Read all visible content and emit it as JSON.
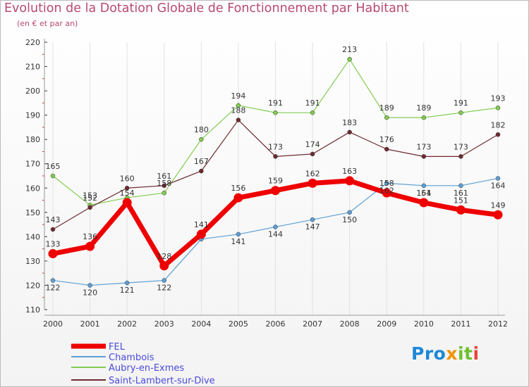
{
  "header": {
    "title": "Evolution de la Dotation Globale de Fonctionnement par Habitant",
    "subtitle": "(en € et par an)"
  },
  "logo": {
    "text": "Proxiti",
    "p1": "Pro",
    "p2": "x",
    "p3": "it",
    "p4": "i"
  },
  "chart_data": {
    "type": "line",
    "title": "Evolution de la Dotation Globale de Fonctionnement par Habitant",
    "subtitle": "(en € et par an)",
    "xlabel": "",
    "ylabel": "",
    "x": [
      "2000",
      "2001",
      "2002",
      "2003",
      "2004",
      "2005",
      "2006",
      "2007",
      "2008",
      "2009",
      "2010",
      "2011",
      "2012"
    ],
    "ylim": [
      110,
      220
    ],
    "yticks": [
      110,
      120,
      130,
      140,
      150,
      160,
      170,
      180,
      190,
      200,
      210,
      220
    ],
    "legend_position": "bottom-left",
    "series": [
      {
        "name": "Aubry-en-Exmes",
        "color": "#80cc50",
        "values": [
          165,
          153,
          156,
          158,
          180,
          194,
          191,
          191,
          213,
          189,
          189,
          191,
          193
        ]
      },
      {
        "name": "Saint-Lambert-sur-Dive",
        "color": "#6e2a2f",
        "values": [
          143,
          152,
          160,
          161,
          167,
          188,
          173,
          174,
          183,
          176,
          173,
          173,
          182
        ]
      },
      {
        "name": "Chambois",
        "color": "#5c9fd4",
        "values": [
          122,
          120,
          121,
          122,
          139,
          141,
          144,
          147,
          150,
          162,
          161,
          161,
          164
        ]
      },
      {
        "name": "FEL",
        "color": "#ee0000",
        "values": [
          133,
          136,
          154,
          128,
          141,
          156,
          159,
          162,
          163,
          158,
          154,
          151,
          149
        ]
      }
    ],
    "legend_order": [
      "FEL",
      "Chambois",
      "Aubry-en-Exmes",
      "Saint-Lambert-sur-Dive"
    ],
    "value_labels": {
      "Aubry-en-Exmes": [
        "165",
        "153",
        "",
        "158",
        "180",
        "194",
        "191",
        "191",
        "213",
        "189",
        "189",
        "191",
        "193"
      ],
      "Saint-Lambert-sur-Dive": [
        "143",
        "152",
        "160",
        "161",
        "167",
        "188",
        "173",
        "174",
        "183",
        "176",
        "173",
        "173",
        "182"
      ],
      "Chambois": [
        "122",
        "120",
        "121",
        "122",
        "",
        "141",
        "144",
        "147",
        "150",
        "162",
        "161",
        "161",
        "164"
      ],
      "FEL": [
        "133",
        "136",
        "154",
        "128",
        "141",
        "156",
        "159",
        "162",
        "163",
        "158",
        "154",
        "151",
        "149"
      ]
    }
  }
}
